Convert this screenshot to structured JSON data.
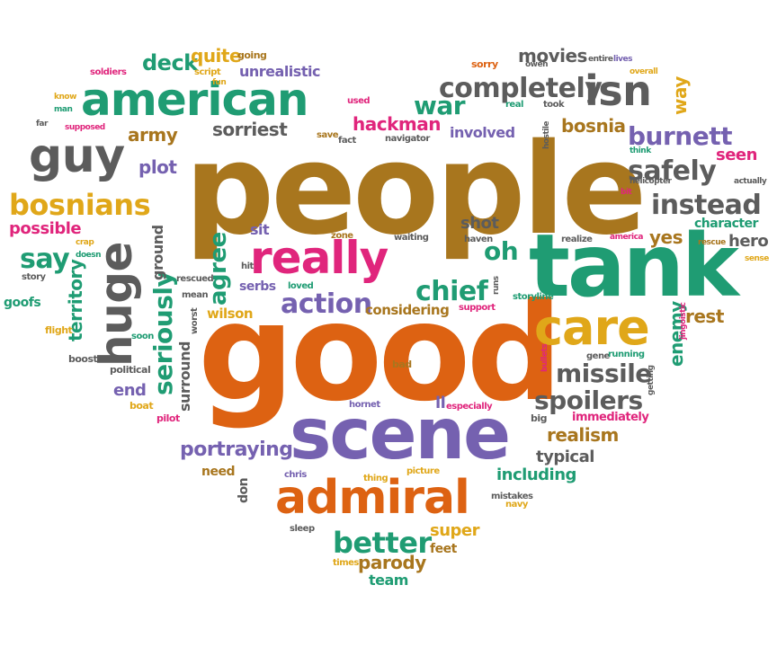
{
  "colors": {
    "brown": "#a8761e",
    "teal": "#1f9c73",
    "orange": "#dd6212",
    "purple": "#7561b0",
    "gray": "#5c5c5c",
    "gold": "#e0a719",
    "magenta": "#e0257c"
  },
  "words": [
    {
      "text": "people",
      "color": "brown"
    },
    {
      "text": "good",
      "color": "orange"
    },
    {
      "text": "tank",
      "color": "teal"
    },
    {
      "text": "scene",
      "color": "purple"
    },
    {
      "text": "american",
      "color": "teal"
    },
    {
      "text": "admiral",
      "color": "orange"
    },
    {
      "text": "really",
      "color": "magenta"
    },
    {
      "text": "care",
      "color": "gold"
    },
    {
      "text": "guy",
      "color": "gray"
    },
    {
      "text": "huge",
      "color": "gray"
    },
    {
      "text": "completely",
      "color": "gray"
    },
    {
      "text": "isn",
      "color": "gray"
    },
    {
      "text": "bosnians",
      "color": "gold"
    },
    {
      "text": "burnett",
      "color": "purple"
    },
    {
      "text": "instead",
      "color": "gray"
    },
    {
      "text": "safely",
      "color": "gray"
    },
    {
      "text": "seriously",
      "color": "teal"
    },
    {
      "text": "missile",
      "color": "gray"
    },
    {
      "text": "spoilers",
      "color": "gray"
    },
    {
      "text": "better",
      "color": "teal"
    },
    {
      "text": "action",
      "color": "purple"
    },
    {
      "text": "agree",
      "color": "teal"
    },
    {
      "text": "chief",
      "color": "teal"
    },
    {
      "text": "portraying",
      "color": "purple"
    },
    {
      "text": "say",
      "color": "teal"
    },
    {
      "text": "war",
      "color": "teal"
    },
    {
      "text": "hackman",
      "color": "magenta"
    },
    {
      "text": "movies",
      "color": "gray"
    },
    {
      "text": "deck",
      "color": "teal"
    },
    {
      "text": "realism",
      "color": "brown"
    },
    {
      "text": "oh",
      "color": "teal"
    },
    {
      "text": "enemy",
      "color": "teal"
    },
    {
      "text": "territory",
      "color": "teal"
    },
    {
      "text": "parody",
      "color": "brown"
    },
    {
      "text": "quite",
      "color": "gold"
    },
    {
      "text": "sorriest",
      "color": "gray"
    },
    {
      "text": "army",
      "color": "brown"
    },
    {
      "text": "plot",
      "color": "purple"
    },
    {
      "text": "unrealistic",
      "color": "purple"
    },
    {
      "text": "bosnia",
      "color": "brown"
    },
    {
      "text": "involved",
      "color": "purple"
    },
    {
      "text": "way",
      "color": "gold"
    },
    {
      "text": "seen",
      "color": "magenta"
    },
    {
      "text": "hero",
      "color": "gray"
    },
    {
      "text": "character",
      "color": "teal"
    },
    {
      "text": "yes",
      "color": "brown"
    },
    {
      "text": "rest",
      "color": "brown"
    },
    {
      "text": "shot",
      "color": "gray"
    },
    {
      "text": "possible",
      "color": "magenta"
    },
    {
      "text": "end",
      "color": "purple"
    },
    {
      "text": "typical",
      "color": "gray"
    },
    {
      "text": "including",
      "color": "teal"
    },
    {
      "text": "super",
      "color": "gold"
    },
    {
      "text": "team",
      "color": "teal"
    },
    {
      "text": "ground",
      "color": "gray"
    },
    {
      "text": "surround",
      "color": "gray"
    },
    {
      "text": "considering",
      "color": "brown"
    },
    {
      "text": "wilson",
      "color": "gold"
    },
    {
      "text": "sit",
      "color": "purple"
    },
    {
      "text": "serbs",
      "color": "purple"
    },
    {
      "text": "goofs",
      "color": "teal"
    },
    {
      "text": "feet",
      "color": "brown"
    },
    {
      "text": "immediately",
      "color": "magenta"
    },
    {
      "text": "need",
      "color": "brown"
    },
    {
      "text": "don",
      "color": "gray"
    },
    {
      "text": "ll",
      "color": "purple"
    },
    {
      "text": "flight",
      "color": "gold"
    },
    {
      "text": "boost",
      "color": "gray"
    },
    {
      "text": "political",
      "color": "gray"
    },
    {
      "text": "boat",
      "color": "gold"
    },
    {
      "text": "pilot",
      "color": "magenta"
    },
    {
      "text": "hornet",
      "color": "purple"
    },
    {
      "text": "bad",
      "color": "brown"
    },
    {
      "text": "especially",
      "color": "magenta"
    },
    {
      "text": "big",
      "color": "gray"
    },
    {
      "text": "chris",
      "color": "purple"
    },
    {
      "text": "thing",
      "color": "gold"
    },
    {
      "text": "picture",
      "color": "gold"
    },
    {
      "text": "mistakes",
      "color": "gray"
    },
    {
      "text": "navy",
      "color": "gold"
    },
    {
      "text": "gene",
      "color": "gray"
    },
    {
      "text": "running",
      "color": "teal"
    },
    {
      "text": "sleep",
      "color": "gray"
    },
    {
      "text": "times",
      "color": "gold"
    },
    {
      "text": "worst",
      "color": "gray"
    },
    {
      "text": "soon",
      "color": "teal"
    },
    {
      "text": "mean",
      "color": "gray"
    },
    {
      "text": "rescued",
      "color": "gray"
    },
    {
      "text": "hit",
      "color": "gray"
    },
    {
      "text": "loved",
      "color": "teal"
    },
    {
      "text": "support",
      "color": "magenta"
    },
    {
      "text": "storyline",
      "color": "teal"
    },
    {
      "text": "runs",
      "color": "gray"
    },
    {
      "text": "waiting",
      "color": "gray"
    },
    {
      "text": "zone",
      "color": "brown"
    },
    {
      "text": "haven",
      "color": "gray"
    },
    {
      "text": "realize",
      "color": "gray"
    },
    {
      "text": "america",
      "color": "magenta"
    },
    {
      "text": "helicopter",
      "color": "gray"
    },
    {
      "text": "rescue",
      "color": "brown"
    },
    {
      "text": "sense",
      "color": "gold"
    },
    {
      "text": "actually",
      "color": "gray"
    },
    {
      "text": "think",
      "color": "teal"
    },
    {
      "text": "bit",
      "color": "magenta"
    },
    {
      "text": "bullets",
      "color": "magenta"
    },
    {
      "text": "getting",
      "color": "gray"
    },
    {
      "text": "jingoistic",
      "color": "magenta"
    },
    {
      "text": "fact",
      "color": "gray"
    },
    {
      "text": "navigator",
      "color": "gray"
    },
    {
      "text": "save",
      "color": "brown"
    },
    {
      "text": "used",
      "color": "magenta"
    },
    {
      "text": "real",
      "color": "teal"
    },
    {
      "text": "took",
      "color": "gray"
    },
    {
      "text": "hostile",
      "color": "gray"
    },
    {
      "text": "sorry",
      "color": "orange"
    },
    {
      "text": "owen",
      "color": "gray"
    },
    {
      "text": "entire",
      "color": "gray"
    },
    {
      "text": "lives",
      "color": "purple"
    },
    {
      "text": "overall",
      "color": "gold"
    },
    {
      "text": "going",
      "color": "brown"
    },
    {
      "text": "script",
      "color": "gold"
    },
    {
      "text": "fun",
      "color": "gold"
    },
    {
      "text": "soldiers",
      "color": "magenta"
    },
    {
      "text": "know",
      "color": "gold"
    },
    {
      "text": "man",
      "color": "teal"
    },
    {
      "text": "far",
      "color": "gray"
    },
    {
      "text": "supposed",
      "color": "magenta"
    },
    {
      "text": "story",
      "color": "gray"
    },
    {
      "text": "crap",
      "color": "gold"
    },
    {
      "text": "doesn",
      "color": "teal"
    }
  ]
}
